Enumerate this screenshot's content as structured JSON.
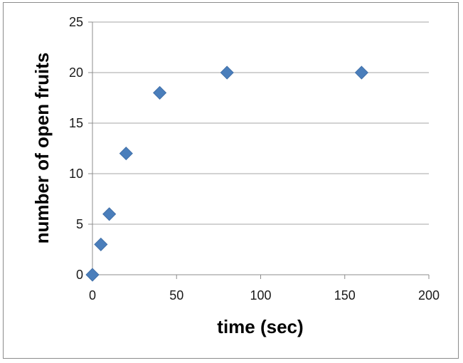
{
  "chart_data": {
    "type": "scatter",
    "title": "",
    "xlabel": "time (sec)",
    "ylabel": "number of open fruits",
    "xlim": [
      0,
      200
    ],
    "ylim": [
      0,
      25
    ],
    "xticks": [
      0,
      50,
      100,
      150,
      200
    ],
    "yticks": [
      0,
      5,
      10,
      15,
      20,
      25
    ],
    "grid": "horizontal",
    "marker": "diamond",
    "series": [
      {
        "color": "#4a7ebb",
        "points": [
          {
            "x": 0,
            "y": 0
          },
          {
            "x": 5,
            "y": 3
          },
          {
            "x": 10,
            "y": 6
          },
          {
            "x": 20,
            "y": 12
          },
          {
            "x": 40,
            "y": 18
          },
          {
            "x": 80,
            "y": 20
          },
          {
            "x": 160,
            "y": 20
          }
        ]
      }
    ]
  },
  "colors": {
    "gridline": "#a6a6a6",
    "axis": "#8c8c8c",
    "frame": "#8c8c8c"
  }
}
